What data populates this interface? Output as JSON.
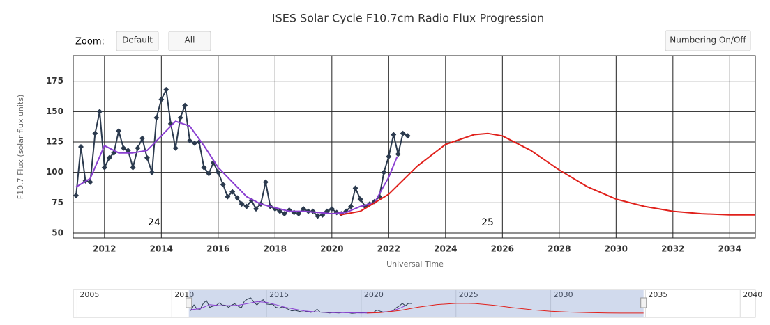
{
  "chart_data": {
    "type": "line",
    "title": "ISES Solar Cycle F10.7cm Radio Flux Progression",
    "zoom_label": "Zoom:",
    "buttons": [
      "Default",
      "All",
      "Numbering On/Off"
    ],
    "xlabel": "Universal Time",
    "ylabel": "F10.7 Flux (solar flux units)",
    "annotations": [
      "24",
      "25"
    ],
    "xlim": [
      2010.9,
      2034.9
    ],
    "xticks": [
      2012,
      2014,
      2016,
      2018,
      2020,
      2022,
      2024,
      2026,
      2028,
      2030,
      2032,
      2034
    ],
    "ylim": [
      46,
      196
    ],
    "yticks": [
      50,
      75,
      100,
      125,
      150,
      175
    ],
    "grid": true,
    "series": [
      {
        "color": "#2b3a4e",
        "marker": "diamond",
        "x": [
          2011,
          2011.17,
          2011.33,
          2011.5,
          2011.67,
          2011.83,
          2012,
          2012.17,
          2012.33,
          2012.5,
          2012.67,
          2012.83,
          2013,
          2013.17,
          2013.33,
          2013.5,
          2013.67,
          2013.83,
          2014,
          2014.17,
          2014.33,
          2014.5,
          2014.67,
          2014.83,
          2015,
          2015.17,
          2015.33,
          2015.5,
          2015.67,
          2015.83,
          2016,
          2016.17,
          2016.33,
          2016.5,
          2016.67,
          2016.83,
          2017,
          2017.17,
          2017.33,
          2017.5,
          2017.67,
          2017.83,
          2018,
          2018.17,
          2018.33,
          2018.5,
          2018.67,
          2018.83,
          2019,
          2019.17,
          2019.33,
          2019.5,
          2019.67,
          2019.83,
          2020,
          2020.17,
          2020.33,
          2020.5,
          2020.67,
          2020.83,
          2021,
          2021.17,
          2021.33,
          2021.5,
          2021.67,
          2021.83,
          2022,
          2022.17,
          2022.33,
          2022.5,
          2022.67
        ],
        "values": [
          81,
          121,
          93,
          92,
          132,
          150,
          104,
          112,
          116,
          134,
          120,
          118,
          104,
          120,
          128,
          112,
          100,
          145,
          160,
          168,
          140,
          120,
          145,
          155,
          126,
          124,
          125,
          104,
          99,
          108,
          100,
          90,
          80,
          84,
          79,
          74,
          72,
          77,
          70,
          74,
          92,
          72,
          70,
          68,
          66,
          69,
          67,
          66,
          70,
          68,
          68,
          64,
          65,
          68,
          70,
          67,
          66,
          68,
          72,
          87,
          78,
          72,
          74,
          76,
          80,
          100,
          113,
          131,
          115,
          132,
          130
        ]
      },
      {
        "color": "#8a3fd1",
        "x": [
          2011,
          2011.5,
          2012,
          2012.5,
          2013,
          2013.5,
          2014,
          2014.5,
          2015,
          2015.5,
          2016,
          2016.5,
          2017,
          2017.5,
          2018,
          2018.5,
          2019,
          2019.5,
          2020,
          2020.5,
          2021,
          2021.5,
          2022,
          2022.3
        ],
        "values": [
          88,
          95,
          122,
          116,
          116,
          118,
          130,
          142,
          138,
          122,
          104,
          92,
          80,
          74,
          71,
          68,
          68,
          67,
          66,
          67,
          72,
          75,
          96,
          113
        ]
      },
      {
        "color": "#e0201b",
        "x": [
          2020.3,
          2021,
          2022,
          2023,
          2024,
          2025,
          2025.5,
          2026,
          2027,
          2028,
          2029,
          2030,
          2031,
          2032,
          2033,
          2034,
          2034.9
        ],
        "values": [
          65,
          68,
          82,
          105,
          123,
          131,
          132,
          130,
          118,
          102,
          88,
          78,
          72,
          68,
          66,
          65,
          65
        ]
      }
    ],
    "navigator": {
      "xlim": [
        2004.8,
        2040.8
      ],
      "xticks": [
        2005,
        2010,
        2015,
        2020,
        2025,
        2030,
        2035,
        2040
      ]
    }
  }
}
